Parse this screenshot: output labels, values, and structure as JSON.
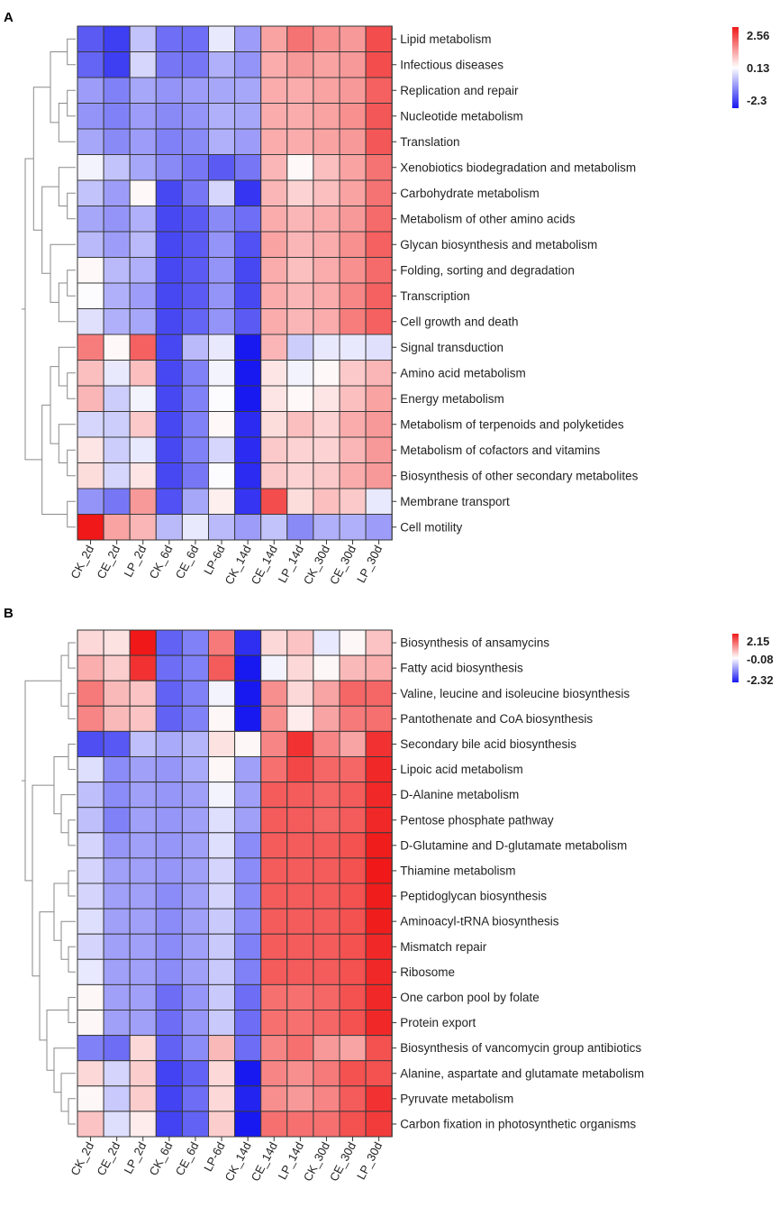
{
  "chart_data": [
    {
      "type": "heatmap",
      "panel": "A",
      "columns": [
        "CK_2d",
        "CE_2d",
        "LP_2d",
        "CK_6d",
        "CE_6d",
        "LP-6d",
        "CK_14d",
        "CE_14d",
        "LP_14d",
        "CK_30d",
        "CE_30d",
        "LP_30d"
      ],
      "rows": [
        "Lipid metabolism",
        "Infectious diseases",
        "Replication and repair",
        "Nucleotide metabolism",
        "Translation",
        "Xenobiotics biodegradation and metabolism",
        "Carbohydrate metabolism",
        "Metabolism of other amino acids",
        "Glycan biosynthesis and metabolism",
        "Folding, sorting and degradation",
        "Transcription",
        "Cell growth and death",
        "Signal transduction",
        "Amino acid metabolism",
        "Energy metabolism",
        "Metabolism of terpenoids and polyketides",
        "Metabolism of cofactors and vitamins",
        "Biosynthesis of other secondary metabolites",
        "Membrane transport",
        "Cell motility"
      ],
      "values": [
        [
          -1.6,
          -1.9,
          -0.5,
          -1.4,
          -1.4,
          -0.1,
          -0.9,
          1.1,
          1.6,
          1.3,
          1.2,
          2.0
        ],
        [
          -1.5,
          -1.9,
          -0.3,
          -1.3,
          -1.3,
          -0.7,
          -1.0,
          1.0,
          1.2,
          1.1,
          1.2,
          2.0
        ],
        [
          -0.9,
          -1.2,
          -0.8,
          -1.0,
          -0.9,
          -0.8,
          -0.8,
          1.0,
          1.0,
          1.1,
          1.2,
          1.8
        ],
        [
          -1.0,
          -1.2,
          -0.9,
          -1.1,
          -1.0,
          -0.7,
          -0.8,
          1.0,
          1.0,
          1.1,
          1.3,
          1.9
        ],
        [
          -0.8,
          -1.1,
          -0.9,
          -1.2,
          -1.1,
          -0.7,
          -0.9,
          1.0,
          1.0,
          1.1,
          1.2,
          1.9
        ],
        [
          0.0,
          -0.5,
          -0.8,
          -1.1,
          -1.3,
          -1.6,
          -1.3,
          0.9,
          0.2,
          0.8,
          1.1,
          1.6
        ],
        [
          -0.5,
          -0.9,
          0.2,
          -1.8,
          -1.3,
          -0.3,
          -2.0,
          0.9,
          0.6,
          0.8,
          1.1,
          1.6
        ],
        [
          -0.8,
          -1.0,
          -0.7,
          -1.8,
          -1.6,
          -1.1,
          -1.4,
          1.0,
          0.9,
          1.0,
          1.2,
          1.7
        ],
        [
          -0.6,
          -0.9,
          -0.6,
          -1.8,
          -1.6,
          -1.0,
          -1.7,
          1.1,
          0.9,
          1.0,
          1.3,
          1.8
        ],
        [
          0.2,
          -0.6,
          -0.7,
          -1.8,
          -1.6,
          -1.0,
          -1.8,
          1.0,
          0.8,
          1.0,
          1.3,
          1.7
        ],
        [
          0.1,
          -0.7,
          -0.9,
          -1.8,
          -1.6,
          -1.0,
          -1.8,
          1.0,
          0.9,
          1.0,
          1.4,
          1.8
        ],
        [
          -0.2,
          -0.7,
          -0.8,
          -1.8,
          -1.5,
          -1.0,
          -1.6,
          1.0,
          0.9,
          1.0,
          1.5,
          1.8
        ],
        [
          1.5,
          0.2,
          1.8,
          -1.8,
          -0.6,
          -0.1,
          -2.3,
          0.9,
          -0.4,
          -0.1,
          -0.1,
          -0.2
        ],
        [
          0.8,
          -0.1,
          0.8,
          -1.8,
          -1.2,
          0.0,
          -2.3,
          0.4,
          0.0,
          0.2,
          0.7,
          0.9
        ],
        [
          0.9,
          -0.4,
          0.0,
          -1.8,
          -1.2,
          0.1,
          -2.3,
          0.4,
          0.2,
          0.4,
          0.8,
          1.1
        ],
        [
          -0.3,
          -0.4,
          0.7,
          -1.8,
          -1.2,
          0.2,
          -2.1,
          0.5,
          0.8,
          0.6,
          1.0,
          1.2
        ],
        [
          0.4,
          -0.4,
          -0.1,
          -1.8,
          -1.2,
          -0.3,
          -2.1,
          0.7,
          0.6,
          0.6,
          0.9,
          1.2
        ],
        [
          0.5,
          -0.3,
          0.4,
          -1.8,
          -1.3,
          0.1,
          -2.1,
          0.7,
          0.6,
          0.7,
          1.0,
          1.2
        ],
        [
          -1.0,
          -1.3,
          1.2,
          -1.7,
          -0.8,
          0.3,
          -2.0,
          2.0,
          0.5,
          0.8,
          0.7,
          -0.1
        ],
        [
          2.56,
          1.1,
          0.9,
          -0.6,
          -0.1,
          -0.6,
          -0.9,
          -0.5,
          -1.1,
          -0.7,
          -0.7,
          -0.9
        ]
      ],
      "legend": {
        "max_label": "2.56",
        "mid_label": "0.13",
        "min_label": "-2.3",
        "min": -2.3,
        "mid": 0.13,
        "max": 2.56
      }
    },
    {
      "type": "heatmap",
      "panel": "B",
      "columns": [
        "CK_2d",
        "CE_2d",
        "LP_2d",
        "CK_6d",
        "CE_6d",
        "LP-6d",
        "CK_14d",
        "CE_14d",
        "LP_14d",
        "CK_30d",
        "CE_30d",
        "LP_30d"
      ],
      "rows": [
        "Biosynthesis of ansamycins",
        "Fatty acid biosynthesis",
        "Valine, leucine and isoleucine biosynthesis",
        "Pantothenate and CoA biosynthesis",
        "Secondary bile acid biosynthesis",
        "Lipoic acid metabolism",
        "D-Alanine metabolism",
        "Pentose phosphate pathway",
        "D-Glutamine and D-glutamate metabolism",
        "Thiamine metabolism",
        "Peptidoglycan biosynthesis",
        "Aminoacyl-tRNA biosynthesis",
        "Mismatch repair",
        "Ribosome",
        "One carbon pool by folate",
        "Protein export",
        "Biosynthesis of vancomycin group antibiotics",
        "Alanine, aspartate and glutamate metabolism",
        "Pyruvate metabolism",
        "Carbon fixation in photosynthetic organisms"
      ],
      "values": [
        [
          0.3,
          0.2,
          2.15,
          -1.6,
          -1.3,
          1.2,
          -2.1,
          0.3,
          0.5,
          -0.3,
          0.0,
          0.5
        ],
        [
          0.7,
          0.4,
          1.9,
          -1.5,
          -1.3,
          1.5,
          -2.32,
          -0.2,
          0.3,
          0.0,
          0.6,
          0.7
        ],
        [
          1.2,
          0.6,
          0.5,
          -1.6,
          -1.3,
          -0.2,
          -2.32,
          1.0,
          0.3,
          0.8,
          1.4,
          1.4
        ],
        [
          1.1,
          0.6,
          0.5,
          -1.6,
          -1.3,
          0.0,
          -2.32,
          1.0,
          0.1,
          0.8,
          1.2,
          1.3
        ],
        [
          -1.8,
          -1.7,
          -0.7,
          -0.9,
          -0.8,
          0.2,
          0.0,
          1.1,
          1.9,
          1.1,
          0.8,
          1.9
        ],
        [
          -0.4,
          -1.2,
          -1.0,
          -1.1,
          -0.9,
          0.0,
          -1.0,
          1.3,
          1.7,
          1.4,
          1.4,
          2.0
        ],
        [
          -0.7,
          -1.2,
          -1.0,
          -1.1,
          -1.0,
          -0.2,
          -1.0,
          1.5,
          1.5,
          1.4,
          1.5,
          2.0
        ],
        [
          -0.7,
          -1.3,
          -1.0,
          -1.1,
          -1.0,
          -0.4,
          -1.0,
          1.5,
          1.5,
          1.4,
          1.5,
          2.0
        ],
        [
          -0.5,
          -1.1,
          -1.0,
          -1.1,
          -1.0,
          -0.4,
          -1.2,
          1.5,
          1.5,
          1.5,
          1.6,
          2.1
        ],
        [
          -0.5,
          -1.0,
          -1.0,
          -1.1,
          -1.0,
          -0.5,
          -1.2,
          1.5,
          1.5,
          1.5,
          1.6,
          2.15
        ],
        [
          -0.5,
          -1.0,
          -1.0,
          -1.2,
          -1.0,
          -0.5,
          -1.2,
          1.5,
          1.5,
          1.5,
          1.6,
          2.1
        ],
        [
          -0.4,
          -1.0,
          -1.0,
          -1.2,
          -1.0,
          -0.6,
          -1.2,
          1.5,
          1.5,
          1.5,
          1.6,
          2.1
        ],
        [
          -0.5,
          -1.0,
          -1.0,
          -1.2,
          -1.0,
          -0.6,
          -1.3,
          1.5,
          1.5,
          1.5,
          1.6,
          2.0
        ],
        [
          -0.3,
          -1.0,
          -1.0,
          -1.2,
          -1.0,
          -0.6,
          -1.3,
          1.5,
          1.5,
          1.5,
          1.6,
          2.0
        ],
        [
          0.0,
          -1.0,
          -1.0,
          -1.5,
          -1.1,
          -0.6,
          -1.5,
          1.3,
          1.3,
          1.4,
          1.6,
          2.0
        ],
        [
          0.0,
          -1.0,
          -1.0,
          -1.5,
          -1.1,
          -0.6,
          -1.5,
          1.3,
          1.3,
          1.4,
          1.6,
          2.0
        ],
        [
          -1.3,
          -1.5,
          0.3,
          -1.6,
          -1.2,
          0.6,
          -1.5,
          1.1,
          1.3,
          0.9,
          0.8,
          1.6
        ],
        [
          0.3,
          -0.5,
          0.4,
          -1.9,
          -1.6,
          0.3,
          -2.32,
          1.1,
          1.0,
          1.2,
          1.6,
          1.6
        ],
        [
          0.0,
          -0.6,
          0.4,
          -1.9,
          -1.5,
          0.3,
          -2.2,
          1.0,
          0.9,
          1.1,
          1.5,
          1.9
        ],
        [
          0.5,
          -0.4,
          0.1,
          -1.9,
          -1.6,
          0.4,
          -2.32,
          1.3,
          1.3,
          1.3,
          1.6,
          1.8
        ]
      ],
      "legend": {
        "max_label": "2.15",
        "mid_label": "-0.08",
        "min_label": "-2.32",
        "min": -2.32,
        "mid": -0.08,
        "max": 2.15
      }
    }
  ],
  "panel_labels": [
    "A",
    "B"
  ]
}
